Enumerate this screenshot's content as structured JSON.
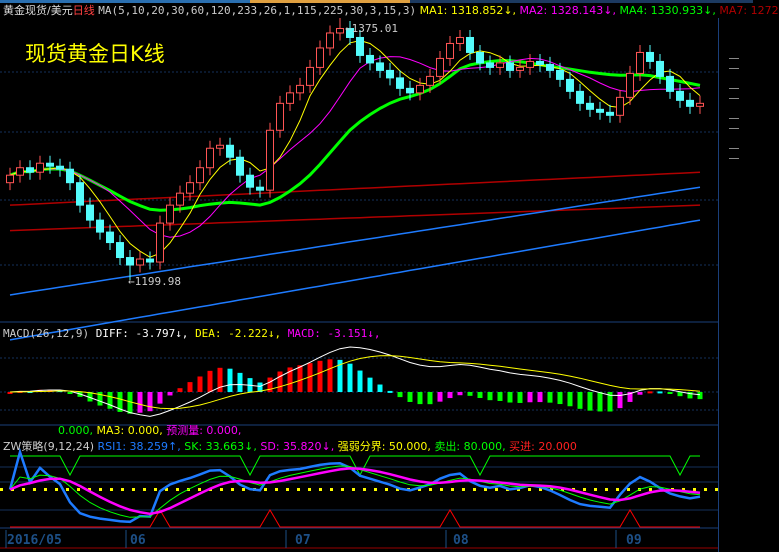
{
  "header": {
    "instrument": "黄金现货/美元",
    "period": "日线",
    "ma_params": "MA(5,10,20,30,60,120,233,26,1,115,225,30,3,15,3)",
    "ma1": "MA1: 1318.852↓,",
    "ma2": "MA2: 1328.143↓,",
    "ma4": "MA4: 1330.933↓,",
    "ma7": "MA7: 1272"
  },
  "overlay_title": "现货黄金日K线",
  "price_labels": {
    "high": "1375.01",
    "low": "1199.98"
  },
  "macd_header": {
    "name": "MACD(26,12,9)",
    "diff": "DIFF: -3.797↓,",
    "dea": "DEA: -2.222↓,",
    "macd": "MACD: -3.151↓,"
  },
  "volume_header": {
    "vol": "0.000,",
    "ma3": "MA3: 0.000,",
    "forecast": "预测量: 0.000,"
  },
  "zw_header": {
    "name": "ZW策略(9,12,24)",
    "rsi1": "RSI1: 38.259↑,",
    "sk": "SK: 33.663↓,",
    "sd": "SD: 35.820↓,",
    "boundary": "强弱分界: 50.000,",
    "sell": "卖出: 80.000,",
    "buy": "买进: 20.000"
  },
  "colors": {
    "up": "#ff5454",
    "down": "#54fcfc",
    "ma1": "#ffff00",
    "ma2": "#ff00ff",
    "ma4": "#00ff00",
    "ma7": "#b00000",
    "long_ma": "#1e7bff",
    "grid": "#14305a",
    "axis_text": "#1d4f86"
  },
  "chart_data": [
    {
      "type": "candlestick",
      "title": "现货黄金日K线",
      "x_ticks": [
        {
          "label": "2016/05",
          "index": 0
        },
        {
          "label": "06",
          "index": 12
        },
        {
          "label": "07",
          "index": 28
        },
        {
          "label": "08",
          "index": 44
        },
        {
          "label": "09",
          "index": 61
        }
      ],
      "ylim": [
        1150,
        1375.01
      ],
      "open": [
        1265,
        1270,
        1275,
        1272,
        1278,
        1276,
        1274,
        1265,
        1250,
        1240,
        1232,
        1225,
        1215,
        1210,
        1214,
        1212,
        1238,
        1250,
        1258,
        1265,
        1275,
        1288,
        1290,
        1282,
        1270,
        1262,
        1260,
        1300,
        1318,
        1325,
        1330,
        1342,
        1355,
        1365,
        1368,
        1362,
        1350,
        1345,
        1340,
        1335,
        1328,
        1325,
        1330,
        1336,
        1348,
        1358,
        1362,
        1352,
        1345,
        1342,
        1345,
        1340,
        1342,
        1346,
        1344,
        1340,
        1334,
        1326,
        1318,
        1314,
        1312,
        1310,
        1322,
        1338,
        1352,
        1346,
        1336,
        1326,
        1320,
        1316
      ],
      "high": [
        1275,
        1280,
        1280,
        1283,
        1283,
        1281,
        1279,
        1270,
        1255,
        1245,
        1237,
        1230,
        1220,
        1219,
        1219,
        1243,
        1255,
        1263,
        1270,
        1280,
        1293,
        1295,
        1295,
        1287,
        1275,
        1267,
        1305,
        1323,
        1330,
        1335,
        1347,
        1360,
        1370,
        1375.01,
        1373,
        1367,
        1355,
        1350,
        1345,
        1340,
        1333,
        1335,
        1341,
        1353,
        1363,
        1367,
        1367,
        1357,
        1350,
        1350,
        1350,
        1347,
        1351,
        1351,
        1349,
        1345,
        1339,
        1331,
        1323,
        1319,
        1317,
        1327,
        1343,
        1357,
        1357,
        1351,
        1341,
        1331,
        1325,
        1323
      ],
      "low": [
        1260,
        1265,
        1267,
        1267,
        1271,
        1269,
        1260,
        1245,
        1235,
        1227,
        1220,
        1210,
        1199.98,
        1205,
        1207,
        1207,
        1233,
        1245,
        1253,
        1260,
        1270,
        1283,
        1277,
        1265,
        1257,
        1255,
        1255,
        1295,
        1313,
        1320,
        1325,
        1337,
        1350,
        1360,
        1357,
        1345,
        1340,
        1335,
        1330,
        1323,
        1320,
        1320,
        1325,
        1331,
        1343,
        1353,
        1347,
        1340,
        1337,
        1337,
        1335,
        1335,
        1337,
        1339,
        1335,
        1329,
        1321,
        1313,
        1309,
        1307,
        1305,
        1305,
        1317,
        1333,
        1341,
        1331,
        1321,
        1315,
        1311,
        1311
      ],
      "close": [
        1270,
        1275,
        1272,
        1278,
        1276,
        1274,
        1265,
        1250,
        1240,
        1232,
        1225,
        1215,
        1210,
        1214,
        1212,
        1238,
        1250,
        1258,
        1265,
        1275,
        1288,
        1290,
        1282,
        1270,
        1262,
        1260,
        1300,
        1318,
        1325,
        1330,
        1342,
        1355,
        1365,
        1368,
        1362,
        1350,
        1345,
        1340,
        1335,
        1328,
        1325,
        1330,
        1336,
        1348,
        1358,
        1362,
        1352,
        1345,
        1342,
        1345,
        1340,
        1342,
        1346,
        1344,
        1340,
        1334,
        1326,
        1318,
        1314,
        1312,
        1310,
        1322,
        1338,
        1352,
        1346,
        1336,
        1326,
        1320,
        1316,
        1318
      ],
      "long_lines": [
        {
          "color": "#b00000",
          "start": 1250,
          "end": 1272
        },
        {
          "color": "#b00000",
          "start": 1233,
          "end": 1250
        },
        {
          "color": "#1e7bff",
          "start": 1190,
          "end": 1262
        },
        {
          "color": "#1e7bff",
          "start": 1160,
          "end": 1240
        }
      ]
    },
    {
      "type": "bar+line",
      "title": "MACD(26,12,9)",
      "series": [
        {
          "name": "DIFF"
        },
        {
          "name": "DEA"
        },
        {
          "name": "MACD"
        }
      ]
    },
    {
      "type": "line",
      "title": "ZW策略(9,12,24)",
      "ylim": [
        0,
        100
      ],
      "levels": {
        "强弱分界": 50,
        "卖出": 80,
        "买进": 20
      },
      "series": [
        {
          "name": "RSI1"
        },
        {
          "name": "SK"
        },
        {
          "name": "SD"
        }
      ]
    }
  ]
}
